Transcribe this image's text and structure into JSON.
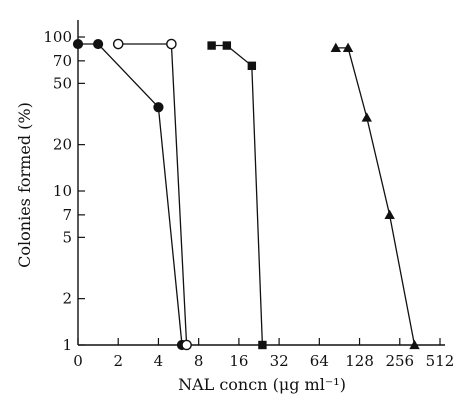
{
  "chart_data": {
    "type": "line",
    "xlabel": "NAL concn (μg ml⁻¹)",
    "ylabel": "Colonies formed (%)",
    "x_scale": "log2 with zero at left",
    "y_scale": "log",
    "x_ticks": [
      0,
      2,
      4,
      8,
      16,
      32,
      64,
      128,
      256,
      512
    ],
    "x_tick_labels": [
      "0",
      "2",
      "4",
      "8",
      "16",
      "32",
      "64",
      "128",
      "256",
      "512"
    ],
    "y_ticks": [
      1,
      2,
      5,
      7,
      10,
      20,
      50,
      70,
      100
    ],
    "y_tick_labels": [
      "1",
      "2",
      "5",
      "7",
      "10",
      "20",
      "50",
      "70",
      "100"
    ],
    "ylim": [
      1,
      120
    ],
    "series": [
      {
        "marker": "filled-circle",
        "points": [
          [
            0,
            90
          ],
          [
            1,
            90
          ],
          [
            4,
            35
          ],
          [
            6,
            1
          ]
        ]
      },
      {
        "marker": "open-circle",
        "points": [
          [
            2,
            90
          ],
          [
            5,
            90
          ],
          [
            6.5,
            1
          ]
        ]
      },
      {
        "marker": "filled-square",
        "points": [
          [
            10,
            88
          ],
          [
            13,
            88
          ],
          [
            20,
            65
          ],
          [
            24,
            1
          ]
        ]
      },
      {
        "marker": "filled-triangle",
        "points": [
          [
            85,
            85
          ],
          [
            105,
            85
          ],
          [
            145,
            30
          ],
          [
            215,
            7
          ],
          [
            330,
            1
          ]
        ]
      }
    ]
  }
}
